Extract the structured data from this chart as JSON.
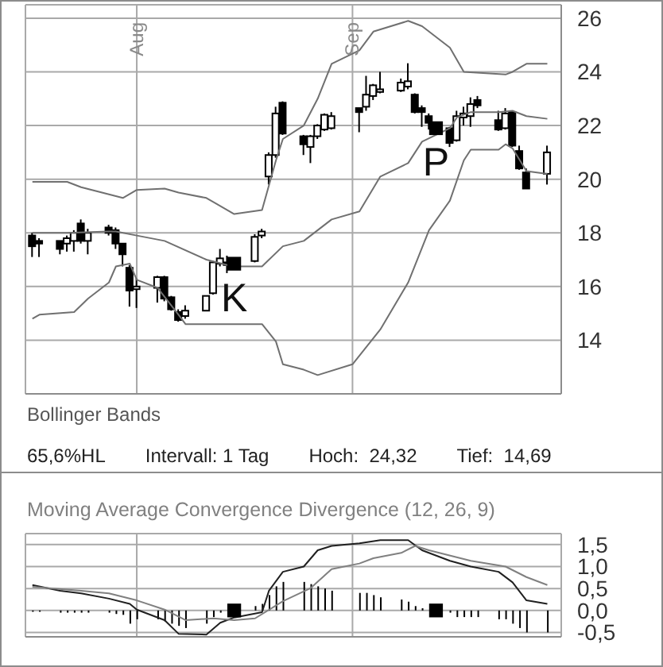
{
  "chart_data": [
    {
      "type": "candlestick",
      "title": "Bollinger Bands",
      "color": "#000000",
      "x": [
        "--07-17",
        "--07-18",
        "--07-21",
        "--07-22",
        "--07-23",
        "--07-24",
        "--07-25",
        "--07-28",
        "--07-29",
        "--07-30",
        "--07-31",
        "--08-01",
        "--08-04",
        "--08-05",
        "--08-06",
        "--08-07",
        "--08-08",
        "--08-11",
        "--08-12",
        "--08-13",
        "--08-14",
        "--08-18",
        "--08-19",
        "--08-20",
        "--08-21",
        "--08-22",
        "--08-25",
        "--08-26",
        "--08-27",
        "--08-28",
        "--08-29",
        "--09-02",
        "--09-03",
        "--09-04",
        "--09-05",
        "--09-08",
        "--09-09",
        "--09-10",
        "--09-11",
        "--09-12",
        "--09-15",
        "--09-16",
        "--09-17",
        "--09-18",
        "--09-19",
        "--09-22",
        "--09-23",
        "--09-24",
        "--09-25",
        "--09-26",
        "--09-29"
      ],
      "ohlc": [
        [
          17.9,
          18.0,
          17.1,
          17.5
        ],
        [
          17.7,
          17.8,
          17.1,
          17.6
        ],
        [
          17.7,
          17.7,
          17.2,
          17.4
        ],
        [
          17.6,
          17.9,
          17.3,
          17.8
        ],
        [
          17.7,
          18.1,
          17.3,
          18.0
        ],
        [
          18.35,
          18.5,
          17.6,
          17.7
        ],
        [
          17.7,
          18.15,
          17.2,
          18.0
        ],
        [
          18.2,
          18.3,
          17.9,
          18.0
        ],
        [
          18.1,
          18.2,
          17.4,
          17.6
        ],
        [
          17.6,
          17.6,
          16.75,
          17.2
        ],
        [
          16.7,
          16.8,
          15.25,
          15.85
        ],
        [
          15.9,
          16.3,
          15.2,
          16.0
        ],
        [
          15.95,
          16.4,
          15.4,
          16.35
        ],
        [
          16.35,
          16.4,
          15.45,
          15.55
        ],
        [
          15.6,
          15.65,
          15.1,
          15.15
        ],
        [
          15.05,
          15.15,
          14.69,
          14.75
        ],
        [
          14.9,
          15.3,
          14.8,
          15.1
        ],
        [
          15.1,
          15.65,
          15.1,
          15.65
        ],
        [
          15.75,
          16.95,
          15.7,
          16.9
        ],
        [
          16.85,
          17.4,
          16.75,
          17.05
        ],
        [
          16.9,
          17.15,
          16.5,
          16.8
        ],
        [
          16.95,
          17.95,
          16.9,
          17.85
        ],
        [
          17.9,
          18.15,
          17.8,
          18.05
        ],
        [
          20.1,
          21.0,
          19.8,
          20.9
        ],
        [
          20.9,
          22.7,
          20.8,
          22.45
        ],
        [
          22.85,
          22.9,
          21.65,
          21.7
        ],
        [
          21.6,
          21.65,
          20.9,
          21.3
        ],
        [
          21.2,
          21.65,
          20.6,
          21.6
        ],
        [
          21.6,
          22.05,
          21.5,
          22.0
        ],
        [
          21.85,
          22.45,
          21.8,
          22.4
        ],
        [
          21.9,
          22.5,
          21.85,
          22.35
        ],
        [
          22.65,
          22.65,
          21.75,
          22.5
        ],
        [
          22.7,
          23.85,
          22.55,
          23.15
        ],
        [
          23.1,
          23.55,
          22.95,
          23.5
        ],
        [
          23.25,
          24.0,
          23.2,
          23.35
        ],
        [
          23.3,
          23.75,
          23.25,
          23.6
        ],
        [
          23.45,
          24.32,
          23.35,
          23.65
        ],
        [
          23.15,
          23.2,
          22.45,
          22.5
        ],
        [
          22.65,
          22.75,
          21.95,
          22.5
        ],
        [
          22.35,
          22.45,
          21.85,
          22.1
        ],
        [
          21.9,
          21.95,
          21.2,
          21.35
        ],
        [
          21.45,
          22.55,
          21.4,
          22.35
        ],
        [
          22.3,
          22.7,
          22.0,
          22.45
        ],
        [
          22.35,
          23.05,
          21.95,
          22.8
        ],
        [
          22.95,
          23.1,
          22.65,
          22.75
        ],
        [
          22.2,
          22.55,
          21.8,
          21.85
        ],
        [
          21.9,
          22.65,
          21.85,
          22.45
        ],
        [
          22.5,
          22.55,
          21.2,
          21.25
        ],
        [
          21.05,
          21.25,
          20.35,
          20.4
        ],
        [
          20.25,
          20.4,
          19.65,
          19.65
        ],
        [
          20.2,
          21.25,
          19.8,
          21.0
        ]
      ],
      "series": [
        {
          "type": "line",
          "color": "#707070",
          "x": [
            "--07-17",
            "--07-22",
            "--07-24",
            "--07-30",
            "--08-01",
            "--08-05",
            "--08-07",
            "--08-11",
            "--08-15",
            "--08-19",
            "--08-21",
            "--08-22",
            "--08-25",
            "--08-27",
            "--08-29",
            "--09-02",
            "--09-04",
            "--09-09",
            "--09-11",
            "--09-15",
            "--09-17",
            "--09-23",
            "--09-24",
            "--09-26",
            "--09-29"
          ],
          "values": [
            19.9,
            19.9,
            19.7,
            19.3,
            19.6,
            19.65,
            19.5,
            19.3,
            18.7,
            18.85,
            20.7,
            21.5,
            22.0,
            23.0,
            24.3,
            24.8,
            25.5,
            25.9,
            25.7,
            24.9,
            24.0,
            23.9,
            24.0,
            24.3,
            24.3
          ]
        },
        {
          "type": "line",
          "color": "#707070",
          "x": [
            "--07-17",
            "--07-22",
            "--07-28",
            "--07-29",
            "--08-01",
            "--08-05",
            "--08-11",
            "--08-14",
            "--08-15",
            "--08-19",
            "--08-22",
            "--08-25",
            "--08-28",
            "--08-29",
            "--09-02",
            "--09-05",
            "--09-09",
            "--09-11",
            "--09-15",
            "--09-16",
            "--09-18",
            "--09-22",
            "--09-24",
            "--09-26",
            "--09-29"
          ],
          "values": [
            18.0,
            18.0,
            18.05,
            18.05,
            17.9,
            17.7,
            17.0,
            16.8,
            16.75,
            16.75,
            17.5,
            17.7,
            18.3,
            18.5,
            18.8,
            20.1,
            20.6,
            21.4,
            21.9,
            22.3,
            22.5,
            22.5,
            22.55,
            22.35,
            22.25
          ]
        },
        {
          "type": "line",
          "color": "#707070",
          "x": [
            "--07-17",
            "--07-18",
            "--07-23",
            "--07-25",
            "--07-28",
            "--07-29",
            "--07-31",
            "--08-01",
            "--08-04",
            "--08-07",
            "--08-08",
            "--08-12",
            "--08-19",
            "--08-21",
            "--08-22",
            "--08-25",
            "--08-27",
            "--09-01",
            "--09-05",
            "--09-09",
            "--09-12",
            "--09-15",
            "--09-17",
            "--09-18",
            "--09-22",
            "--09-23",
            "--09-24",
            "--09-26",
            "--09-29"
          ],
          "values": [
            14.8,
            14.95,
            15.05,
            15.55,
            16.15,
            16.75,
            16.85,
            16.25,
            15.95,
            14.95,
            14.6,
            14.6,
            14.6,
            13.95,
            13.1,
            12.9,
            12.7,
            13.1,
            14.4,
            16.15,
            18.1,
            19.2,
            20.7,
            21.1,
            21.1,
            21.3,
            21.15,
            20.3,
            20.2
          ]
        },
        {
          "type": "scatter",
          "marker": "square",
          "color": "#000000",
          "x": [
            "--08-15",
            "--09-13"
          ],
          "values": [
            16.85,
            21.9
          ]
        }
      ],
      "xlim": [
        "--07-16",
        "--10-01"
      ],
      "xticks": [
        {
          "value": "--08-01",
          "label": "Aug"
        },
        {
          "value": "--09-01",
          "label": "Sep"
        }
      ],
      "ylim": [
        12,
        26.5
      ],
      "yticks": [
        14,
        16,
        18,
        20,
        22,
        24,
        26
      ],
      "grid": true,
      "annotations": [
        {
          "text": "K",
          "x": "--08-15",
          "y": 16.85
        },
        {
          "text": "P",
          "x": "--09-13",
          "y": 21.9
        },
        "65,6%HL",
        "Intervall: 1 Tag",
        "Hoch:  24,32",
        "Tief:  14,69"
      ]
    },
    {
      "type": "line",
      "title": "Moving Average Convergence Divergence (12, 26, 9)",
      "series": [
        {
          "type": "line",
          "color": "#202020",
          "x": [
            "--07-17",
            "--07-21",
            "--07-24",
            "--07-28",
            "--07-31",
            "--08-01",
            "--08-05",
            "--08-07",
            "--08-11",
            "--08-13",
            "--08-15",
            "--08-19",
            "--08-20",
            "--08-22",
            "--08-25",
            "--08-27",
            "--08-29",
            "--09-02",
            "--09-05",
            "--09-09",
            "--09-11",
            "--09-15",
            "--09-18",
            "--09-22",
            "--09-24",
            "--09-26",
            "--09-29"
          ],
          "values": [
            0.58,
            0.45,
            0.39,
            0.27,
            0.15,
            0.02,
            -0.22,
            -0.53,
            -0.55,
            -0.28,
            -0.16,
            -0.04,
            0.45,
            0.88,
            1.0,
            1.37,
            1.47,
            1.53,
            1.6,
            1.6,
            1.37,
            1.13,
            1.0,
            0.88,
            0.64,
            0.23,
            0.15
          ]
        },
        {
          "type": "line",
          "color": "#808080",
          "x": [
            "--07-17",
            "--07-24",
            "--07-28",
            "--08-01",
            "--08-05",
            "--08-08",
            "--08-12",
            "--08-15",
            "--08-18",
            "--08-22",
            "--08-26",
            "--08-29",
            "--09-02",
            "--09-04",
            "--09-08",
            "--09-10",
            "--09-12",
            "--09-18",
            "--09-23",
            "--09-26",
            "--09-29"
          ],
          "values": [
            0.54,
            0.45,
            0.39,
            0.23,
            0.02,
            -0.22,
            -0.18,
            -0.22,
            -0.18,
            0.21,
            0.51,
            0.94,
            1.07,
            1.19,
            1.31,
            1.47,
            1.37,
            1.13,
            1.0,
            0.76,
            0.58
          ]
        },
        {
          "type": "bar",
          "color": "#000000",
          "x": [
            "--07-17",
            "--07-18",
            "--07-21",
            "--07-22",
            "--07-23",
            "--07-24",
            "--07-25",
            "--07-28",
            "--07-29",
            "--07-30",
            "--07-31",
            "--08-01",
            "--08-04",
            "--08-05",
            "--08-06",
            "--08-07",
            "--08-08",
            "--08-11",
            "--08-12",
            "--08-13",
            "--08-14",
            "--08-18",
            "--08-19",
            "--08-20",
            "--08-21",
            "--08-22",
            "--08-25",
            "--08-26",
            "--08-27",
            "--08-28",
            "--08-29",
            "--09-02",
            "--09-03",
            "--09-04",
            "--09-05",
            "--09-08",
            "--09-09",
            "--09-10",
            "--09-11",
            "--09-12",
            "--09-15",
            "--09-16",
            "--09-17",
            "--09-18",
            "--09-19",
            "--09-22",
            "--09-23",
            "--09-24",
            "--09-25",
            "--09-26",
            "--09-29"
          ],
          "values": [
            -0.03,
            -0.03,
            -0.05,
            -0.05,
            -0.05,
            -0.05,
            -0.05,
            -0.05,
            -0.08,
            -0.1,
            -0.3,
            -0.2,
            -0.2,
            -0.25,
            -0.3,
            -0.35,
            -0.4,
            -0.3,
            -0.15,
            -0.05,
            null,
            0.1,
            0.15,
            0.35,
            0.55,
            0.65,
            0.65,
            0.6,
            0.55,
            0.5,
            0.45,
            0.4,
            0.4,
            0.35,
            0.3,
            0.25,
            0.2,
            0.1,
            0.05,
            null,
            -0.05,
            -0.15,
            -0.15,
            -0.15,
            -0.15,
            -0.2,
            -0.2,
            -0.3,
            -0.4,
            -0.5,
            -0.5
          ]
        },
        {
          "type": "scatter",
          "marker": "square",
          "color": "#000000",
          "x": [
            "--08-15",
            "--09-13"
          ],
          "values": [
            0,
            0
          ]
        }
      ],
      "xlim": [
        "--07-16",
        "--10-01"
      ],
      "xticks": [
        {
          "value": "--08-01",
          "label": null
        },
        {
          "value": "--09-01",
          "label": null
        }
      ],
      "ylim": [
        -0.6,
        1.75
      ],
      "yticks": [
        {
          "value": 1.5,
          "label": "1,5"
        },
        {
          "value": 1.0,
          "label": "1,0"
        },
        {
          "value": 0.5,
          "label": "0,5"
        },
        {
          "value": 0.0,
          "label": "0,0"
        },
        {
          "value": -0.5,
          "label": "-0,5"
        }
      ],
      "grid": true,
      "tick_labels": "y"
    }
  ]
}
